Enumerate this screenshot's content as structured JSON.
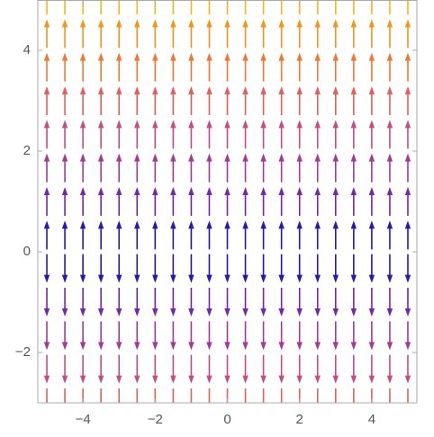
{
  "chart_data": {
    "type": "vector_field",
    "xlim": [
      -5.25,
      5.25
    ],
    "ylim": [
      -3,
      5
    ],
    "xticks": [
      {
        "value": -4,
        "label": "−4"
      },
      {
        "value": -2,
        "label": "−2"
      },
      0,
      2,
      4
    ],
    "yticks": [
      {
        "value": -2,
        "label": "−2"
      },
      0,
      2,
      4
    ],
    "x": [
      -5,
      -4.5,
      -4,
      -3.5,
      -3,
      -2.5,
      -2,
      -1.5,
      -1,
      -0.5,
      0,
      0.5,
      1,
      1.5,
      2,
      2.5,
      3,
      3.5,
      4,
      4.5,
      5
    ],
    "rows": [
      {
        "y": -3,
        "dy": -3
      },
      {
        "y": -2.333,
        "dy": -2.333
      },
      {
        "y": -1.667,
        "dy": -1.667
      },
      {
        "y": -1,
        "dy": -1
      },
      {
        "y": -0.333,
        "dy": -0.333
      },
      {
        "y": 0.333,
        "dy": 0.333
      },
      {
        "y": 1,
        "dy": 1
      },
      {
        "y": 1.667,
        "dy": 1.667
      },
      {
        "y": 2.333,
        "dy": 2.333
      },
      {
        "y": 3,
        "dy": 3
      },
      {
        "y": 3.667,
        "dy": 3.667
      },
      {
        "y": 4.333,
        "dy": 4.333
      },
      {
        "y": 5,
        "dy": 5
      }
    ],
    "colormap": [
      "#0a0ab4",
      "#6a22b0",
      "#a6389a",
      "#d2507a",
      "#ec6a48",
      "#f48c1c",
      "#fbb418"
    ]
  }
}
